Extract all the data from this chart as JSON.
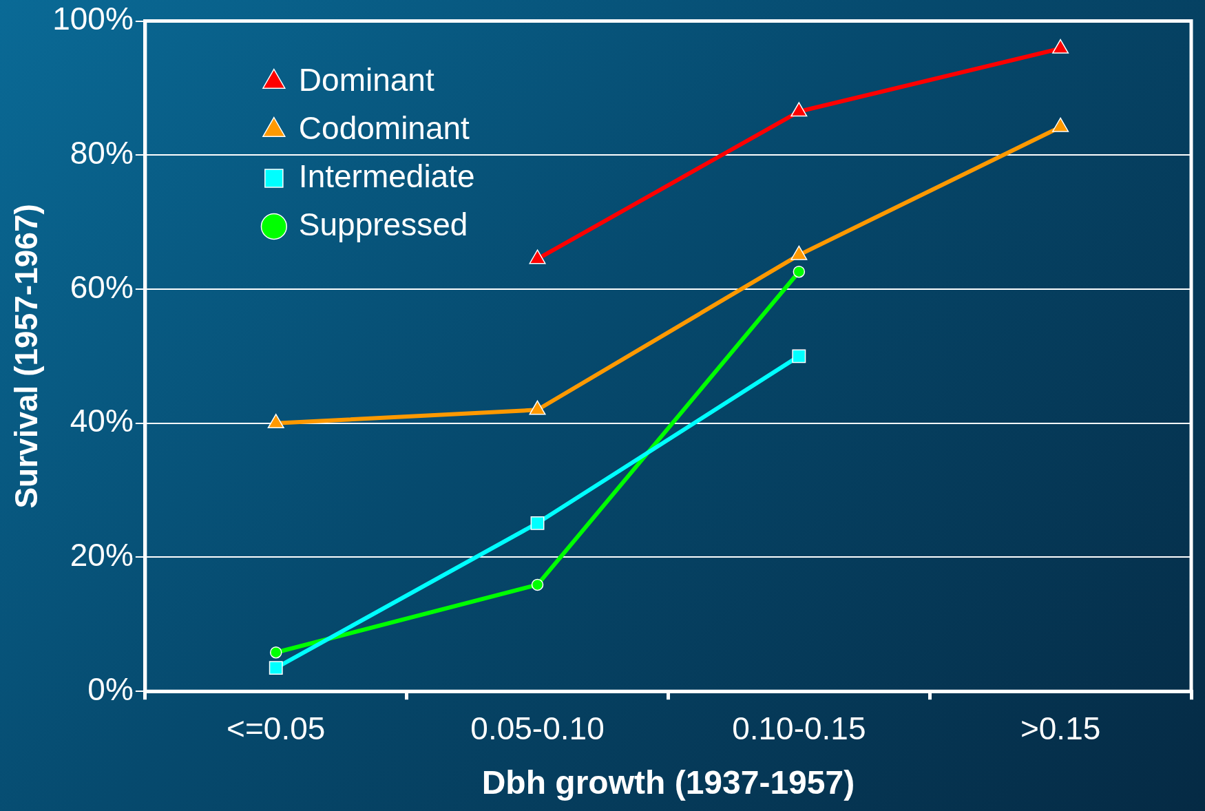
{
  "chart_data": {
    "type": "line",
    "xlabel": "Dbh growth (1937-1957)",
    "ylabel": "Survival (1957-1967)",
    "categories": [
      "<=0.05",
      "0.05-0.10",
      "0.10-0.15",
      ">0.15"
    ],
    "series": [
      {
        "name": "Dominant",
        "color": "#ff0000",
        "marker": "triangle",
        "values": [
          null,
          64.5,
          86.5,
          95.9
        ]
      },
      {
        "name": "Codominant",
        "color": "#ff9900",
        "marker": "triangle",
        "values": [
          40,
          42,
          65.1,
          84.2
        ]
      },
      {
        "name": "Intermediate",
        "color": "#00ffff",
        "marker": "square",
        "values": [
          3.5,
          25.1,
          50,
          null
        ]
      },
      {
        "name": "Suppressed",
        "color": "#00ff00",
        "marker": "circle",
        "values": [
          5.8,
          15.9,
          62.6,
          null
        ]
      }
    ],
    "ylim": [
      0,
      100
    ],
    "yticks": [
      {
        "value": 0,
        "label": "0%"
      },
      {
        "value": 20,
        "label": "20%"
      },
      {
        "value": 40,
        "label": "40%"
      },
      {
        "value": 60,
        "label": "60%"
      },
      {
        "value": 80,
        "label": "80%"
      },
      {
        "value": 100,
        "label": "100%"
      }
    ],
    "grid": "y",
    "legend": "top left"
  }
}
